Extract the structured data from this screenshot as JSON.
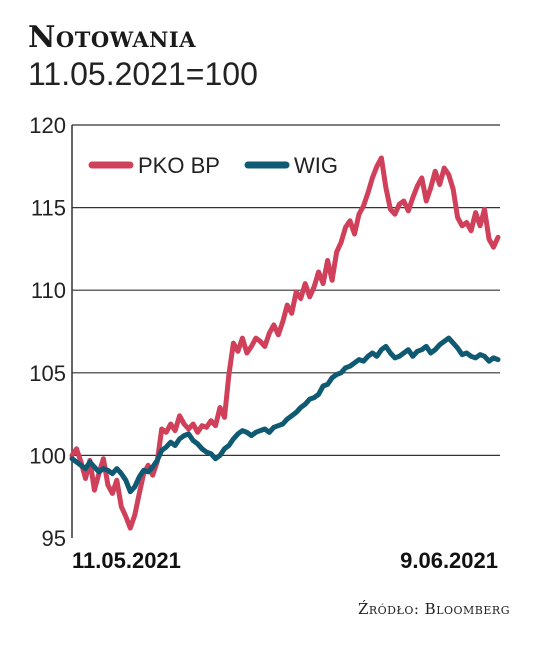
{
  "header": {
    "title": "Notowania",
    "subtitle": "11.05.2021=100"
  },
  "source": "Źródło: Bloomberg",
  "colors": {
    "pko": "#d0405a",
    "wig": "#0f5a72",
    "grid": "#333333"
  },
  "chart_data": {
    "type": "line",
    "title": "Notowania",
    "subtitle": "11.05.2021=100",
    "ylim": [
      95,
      120
    ],
    "yticks": [
      95,
      100,
      105,
      110,
      115,
      120
    ],
    "x_range": [
      "11.05.2021",
      "9.06.2021"
    ],
    "xtick_labels": [
      "11.05.2021",
      "9.06.2021"
    ],
    "grid": "horizontal",
    "legend_position": "top-left",
    "series": [
      {
        "name": "PKO BP",
        "color": "#d0405a",
        "values": [
          100.0,
          100.4,
          99.6,
          98.6,
          99.7,
          97.9,
          98.9,
          99.8,
          98.2,
          97.7,
          98.5,
          96.9,
          96.3,
          95.6,
          96.4,
          97.7,
          98.9,
          99.4,
          98.8,
          99.6,
          101.6,
          101.4,
          101.9,
          101.5,
          102.4,
          101.9,
          101.6,
          101.9,
          101.4,
          101.8,
          101.7,
          102.1,
          101.8,
          102.9,
          102.3,
          104.9,
          106.8,
          106.3,
          107.1,
          106.2,
          106.6,
          107.1,
          106.9,
          106.6,
          107.4,
          107.9,
          107.3,
          108.1,
          109.1,
          108.6,
          109.9,
          109.5,
          110.4,
          109.6,
          110.2,
          111.1,
          110.4,
          111.8,
          110.6,
          112.3,
          112.9,
          113.8,
          114.2,
          113.4,
          114.6,
          115.1,
          115.9,
          116.8,
          117.5,
          118.0,
          116.2,
          114.9,
          114.6,
          115.2,
          115.4,
          114.8,
          115.6,
          116.3,
          116.8,
          115.4,
          116.2,
          117.2,
          116.4,
          117.4,
          117.0,
          116.1,
          114.4,
          113.9,
          114.1,
          113.6,
          114.7,
          113.9,
          114.9,
          113.1,
          112.6,
          113.2
        ]
      },
      {
        "name": "WIG",
        "color": "#0f5a72",
        "values": [
          99.8,
          99.6,
          99.4,
          99.2,
          99.6,
          99.3,
          99.0,
          99.2,
          99.1,
          98.9,
          99.2,
          98.9,
          98.5,
          97.8,
          98.1,
          98.7,
          99.1,
          99.0,
          99.3,
          99.7,
          100.3,
          100.5,
          100.8,
          100.6,
          101.0,
          101.2,
          101.3,
          100.9,
          100.7,
          100.4,
          100.2,
          100.1,
          99.8,
          100.0,
          100.4,
          100.6,
          101.0,
          101.3,
          101.5,
          101.4,
          101.2,
          101.4,
          101.5,
          101.6,
          101.4,
          101.7,
          101.8,
          101.9,
          102.2,
          102.4,
          102.6,
          102.9,
          103.1,
          103.4,
          103.5,
          103.7,
          104.2,
          104.3,
          104.7,
          104.9,
          105.0,
          105.3,
          105.4,
          105.6,
          105.8,
          105.7,
          106.0,
          106.2,
          106.0,
          106.4,
          106.6,
          106.2,
          105.9,
          106.0,
          106.2,
          106.4,
          106.0,
          106.3,
          106.4,
          106.6,
          106.2,
          106.4,
          106.7,
          106.9,
          107.1,
          106.8,
          106.5,
          106.1,
          106.2,
          106.0,
          105.9,
          106.1,
          106.0,
          105.7,
          105.9,
          105.8
        ]
      }
    ]
  }
}
